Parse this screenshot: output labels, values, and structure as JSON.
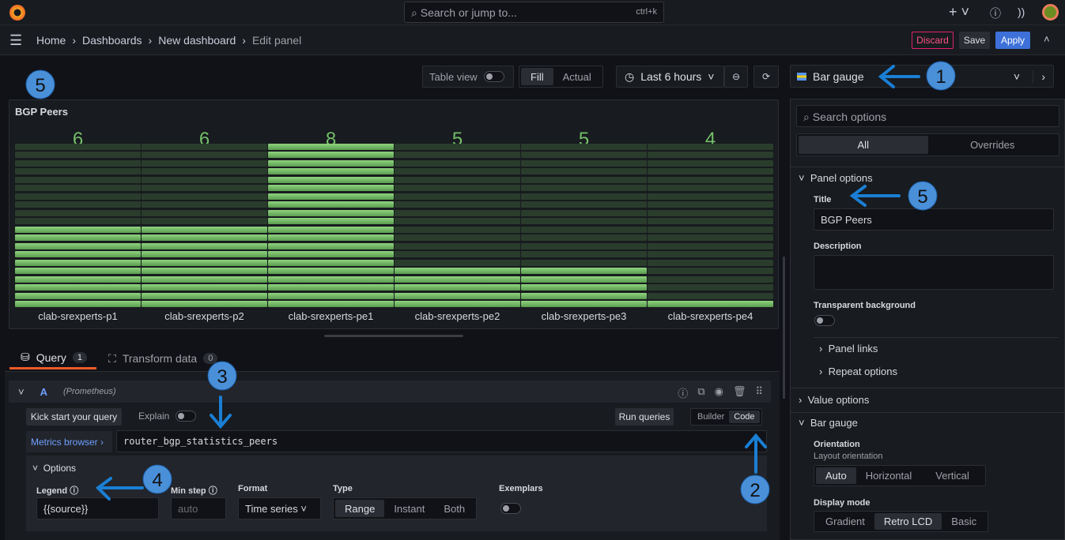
{
  "topbar": {
    "search_placeholder": "Search or jump to...",
    "shortcut": "ctrl+k"
  },
  "breadcrumb": [
    "Home",
    "Dashboards",
    "New dashboard",
    "Edit panel"
  ],
  "actions": {
    "discard": "Discard",
    "save": "Save",
    "apply": "Apply"
  },
  "toolbar": {
    "table_view": "Table view",
    "fill": "Fill",
    "actual": "Actual",
    "time_range": "Last 6 hours"
  },
  "panel": {
    "title": "BGP Peers"
  },
  "chart_data": {
    "type": "bar",
    "style": "retro-lcd",
    "min": 4,
    "max": 8,
    "color": "#73bf69",
    "categories": [
      "clab-srexperts-p1",
      "clab-srexperts-p2",
      "clab-srexperts-pe1",
      "clab-srexperts-pe2",
      "clab-srexperts-pe3",
      "clab-srexperts-pe4"
    ],
    "values": [
      6,
      6,
      8,
      5,
      5,
      4
    ]
  },
  "query_tabs": [
    {
      "label": "Query",
      "count": "1"
    },
    {
      "label": "Transform data",
      "count": "0"
    }
  ],
  "query": {
    "ref": "A",
    "datasource": "(Prometheus)",
    "kick_start": "Kick start your query",
    "explain": "Explain",
    "run": "Run queries",
    "builder": "Builder",
    "code": "Code",
    "metrics_browser": "Metrics browser ›",
    "expr": "router_bgp_statistics_peers",
    "options_label": "Options",
    "legend_label": "Legend",
    "legend_value": "{{source}}",
    "min_step_label": "Min step",
    "min_step_placeholder": "auto",
    "format_label": "Format",
    "format_value": "Time series",
    "type_label": "Type",
    "types": [
      "Range",
      "Instant",
      "Both"
    ],
    "exemplars_label": "Exemplars"
  },
  "options": {
    "viz": "Bar gauge",
    "search_placeholder": "Search options",
    "tabs": [
      "All",
      "Overrides"
    ],
    "panel_options": "Panel options",
    "title_label": "Title",
    "title_value": "BGP Peers",
    "description_label": "Description",
    "transparent_label": "Transparent background",
    "panel_links": "Panel links",
    "repeat_options": "Repeat options",
    "value_options": "Value options",
    "bar_gauge": "Bar gauge",
    "orientation_label": "Orientation",
    "orientation_desc": "Layout orientation",
    "orientations": [
      "Auto",
      "Horizontal",
      "Vertical"
    ],
    "display_mode_label": "Display mode",
    "display_modes": [
      "Gradient",
      "Retro LCD",
      "Basic"
    ]
  },
  "annotations": [
    "1",
    "2",
    "3",
    "4",
    "5",
    "5"
  ]
}
